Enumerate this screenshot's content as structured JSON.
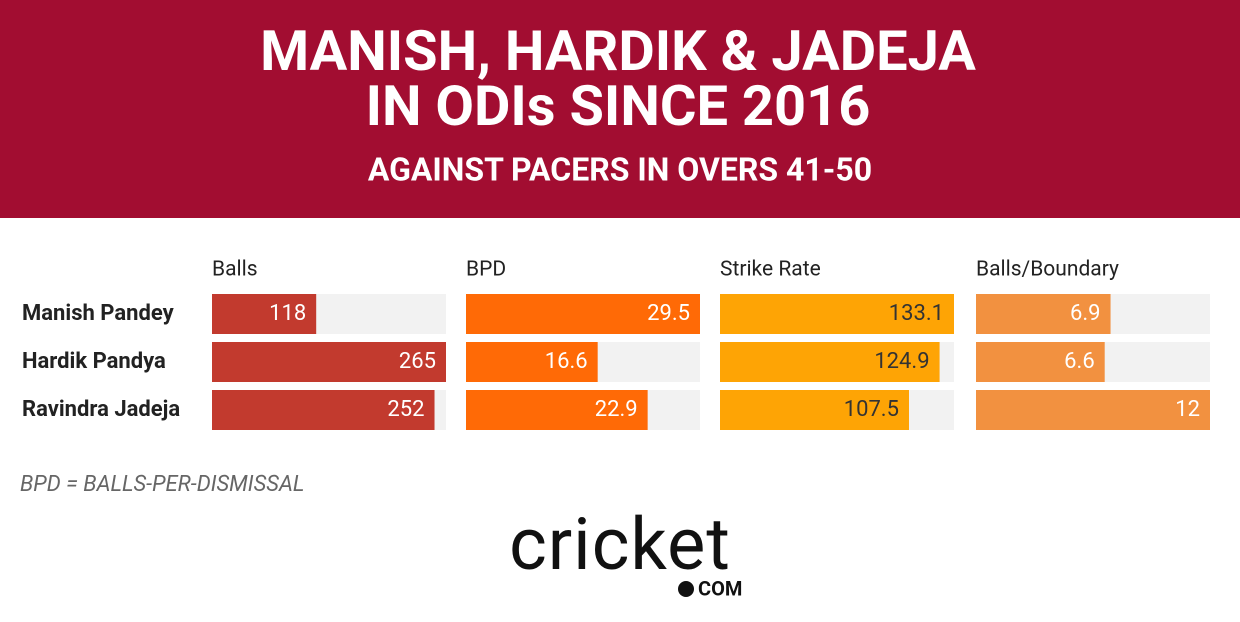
{
  "chart_data": {
    "type": "bar",
    "title": [
      "MANISH, HARDIK & JADEJA",
      "IN ODIs SINCE 2016"
    ],
    "subtitle": "AGAINST PACERS IN OVERS 41-50",
    "categories": [
      "Manish Pandey",
      "Hardik Pandya",
      "Ravindra Jadeja"
    ],
    "series": [
      {
        "name": "Balls",
        "color": "#c23a2e",
        "label_color": "#ffffff",
        "values": [
          118,
          265,
          252
        ],
        "xlim": [
          0,
          265
        ]
      },
      {
        "name": "BPD",
        "color": "#ff6a06",
        "label_color": "#ffffff",
        "values": [
          29.5,
          16.6,
          22.9
        ],
        "xlim": [
          0,
          29.5
        ]
      },
      {
        "name": "Strike Rate",
        "color": "#fea405",
        "label_color": "#333333",
        "values": [
          133.1,
          124.9,
          107.5
        ],
        "xlim": [
          0,
          133.1
        ]
      },
      {
        "name": "Balls/Boundary",
        "color": "#f29140",
        "label_color": "#ffffff",
        "values": [
          6.9,
          6.6,
          12
        ],
        "xlim": [
          0,
          12
        ]
      }
    ],
    "note": "BPD = BALLS-PER-DISMISSAL",
    "logo": "cricket",
    "logo_domain": "COM"
  }
}
